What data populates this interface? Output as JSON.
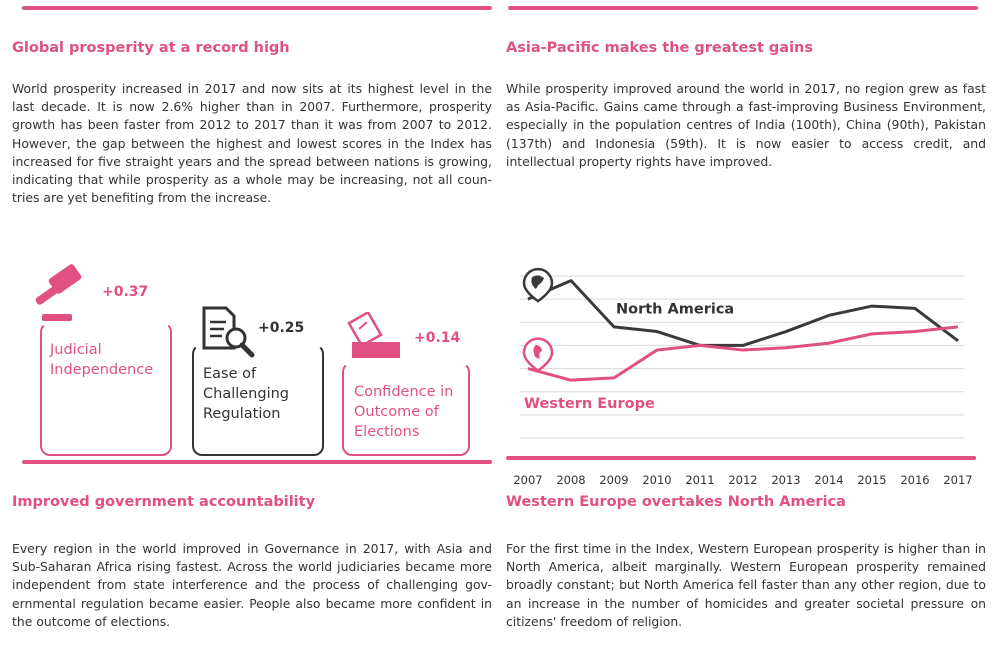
{
  "colors": {
    "accent": "#e05083",
    "dark": "#333333",
    "grid": "#d9d9d9"
  },
  "section_tl": {
    "title": "Global prosperity at a record high",
    "body": "World prosperity increased in 2017 and now sits at its highest level in the last decade. It is now 2.6% higher than in 2007. Furthermore, prosperity growth has been faster from 2012 to 2017 than it was from 2007 to 2012. However, the gap between the highest and lowest scores in the Index has increased for five straight years and the spread between nations is growing, indicating that while prosperity as a whole may be increasing, not all coun-tries are yet benefiting from the increase."
  },
  "section_tr": {
    "title": "Asia-Pacific makes the greatest gains",
    "body": "While prosperity improved around the world in 2017, no region grew as fast as Asia-Pacific. Gains came through a fast-improving Business Environment, especially in the population centres of India (100th), China (90th), Pakistan (137th) and Indonesia (59th). It is now easier to access credit, and intellectual property rights have improved."
  },
  "cards": [
    {
      "label": "Judicial\nIndependence",
      "delta": "+0.37",
      "icon": "gavel-icon"
    },
    {
      "label": "Ease of\nChallenging\nRegulation",
      "delta": "+0.25",
      "icon": "document-magnifier-icon"
    },
    {
      "label": "Confidence in\nOutcome of\nElections",
      "delta": "+0.14",
      "icon": "ballot-box-icon"
    }
  ],
  "section_bl": {
    "title": "Improved government accountability",
    "body": "Every region in the world improved in Governance in 2017, with Asia and Sub-Saharan Africa rising fastest. Across the world judiciaries became more independent from state interference and the process of challenging gov-ernmental regulation became easier. People also became more confident in the outcome of elections."
  },
  "section_br": {
    "title": "Western Europe overtakes North America",
    "body": "For the first time in the Index, Western European prosperity is higher than in North America, albeit marginally. Western European prosperity remained broadly constant; but North America fell faster than any other region, due to an increase in the number of homicides and greater societal pressure on citizens' freedom of religion."
  },
  "chart_data": {
    "type": "line",
    "x": [
      "2007",
      "2008",
      "2009",
      "2010",
      "2011",
      "2012",
      "2013",
      "2014",
      "2015",
      "2016",
      "2017"
    ],
    "series": [
      {
        "name": "North America",
        "color": "#3a3a3a",
        "icon": "north-america-globe-icon",
        "values": [
          6.0,
          6.8,
          4.8,
          4.6,
          4.0,
          4.0,
          4.6,
          5.3,
          5.7,
          5.6,
          4.2
        ]
      },
      {
        "name": "Western Europe",
        "color": "#e05083",
        "icon": "europe-globe-icon",
        "values": [
          3.0,
          2.5,
          2.6,
          3.8,
          4.0,
          3.8,
          3.9,
          4.1,
          4.5,
          4.6,
          4.8
        ]
      }
    ],
    "ylim": [
      0,
      7
    ],
    "grid": true
  }
}
